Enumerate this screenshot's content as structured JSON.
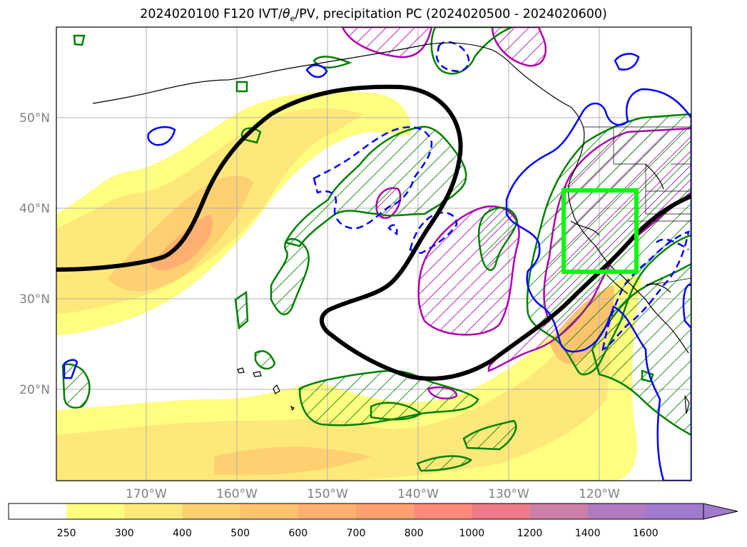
{
  "title": {
    "prefix": "2024020100 F120 IVT/",
    "theta": "θ",
    "theta_sub": "e",
    "suffix": "/PV, precipitation PC (2024020500 - 2024020600)"
  },
  "map": {
    "lat_labels": [
      "50°N",
      "40°N",
      "30°N",
      "20°N"
    ],
    "lon_labels": [
      "170°W",
      "160°W",
      "150°W",
      "140°W",
      "130°W",
      "120°W"
    ],
    "colors": {
      "pv_contour": "#000000",
      "precip_box": "#00ff00",
      "theta_solid": "#0000ff",
      "theta_dashed": "#0000ff",
      "pc_positive": "#008000",
      "pc_negative": "#b000b0",
      "coast": "#000000"
    }
  },
  "colorbar": {
    "labels": [
      "250",
      "300",
      "400",
      "500",
      "600",
      "700",
      "800",
      "1000",
      "1200",
      "1400",
      "1600"
    ],
    "colors": [
      "#ffffff",
      "#ffff80",
      "#ffe87a",
      "#ffd070",
      "#ffc36e",
      "#ffb070",
      "#ffa070",
      "#ff8a7a",
      "#ee7a8a",
      "#cc80a8",
      "#b07ac0",
      "#a07acc"
    ]
  }
}
